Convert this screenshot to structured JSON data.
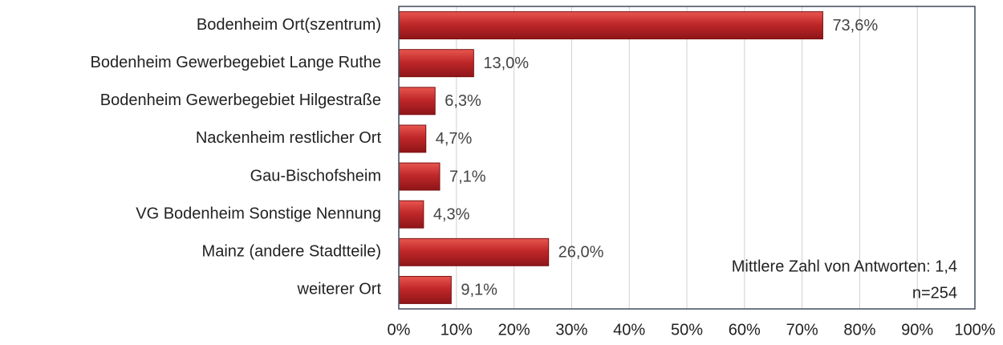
{
  "chart_data": {
    "type": "hbar",
    "categories": [
      "Bodenheim Ort(szentrum)",
      "Bodenheim Gewerbegebiet Lange Ruthe",
      "Bodenheim Gewerbegebiet Hilgestraße",
      "Nackenheim restlicher Ort",
      "Gau-Bischofsheim",
      "VG Bodenheim Sonstige Nennung",
      "Mainz (andere Stadtteile)",
      "weiterer Ort"
    ],
    "values": [
      73.6,
      13.0,
      6.3,
      4.7,
      7.1,
      4.3,
      26.0,
      9.1
    ],
    "value_labels": [
      "73,6%",
      "13,0%",
      "6,3%",
      "4,7%",
      "7,1%",
      "4,3%",
      "26,0%",
      "9,1%"
    ],
    "color": "#c0282a",
    "xlim": [
      0,
      100
    ],
    "xticks": [
      {
        "value": 0,
        "label": "0%"
      },
      {
        "value": 10,
        "label": "10%"
      },
      {
        "value": 20,
        "label": "20%"
      },
      {
        "value": 30,
        "label": "30%"
      },
      {
        "value": 40,
        "label": "40%"
      },
      {
        "value": 50,
        "label": "50%"
      },
      {
        "value": 60,
        "label": "60%"
      },
      {
        "value": 70,
        "label": "70%"
      },
      {
        "value": 80,
        "label": "80%"
      },
      {
        "value": 90,
        "label": "90%"
      },
      {
        "value": 100,
        "label": "100%"
      }
    ],
    "grid": true,
    "annotations": [
      "Mittlere Zahl von Antworten: 1,4",
      "n=254"
    ]
  }
}
